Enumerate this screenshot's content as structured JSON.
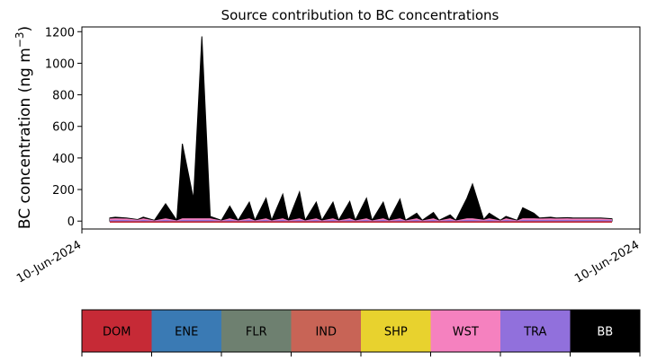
{
  "chart_data": {
    "type": "area",
    "title": "Source contribution to BC concentrations",
    "ylabel_main": "BC concentration (ng m",
    "ylabel_exp": "−3",
    "ylabel_close": ")",
    "ylim": [
      -50,
      1230
    ],
    "yticks": [
      0,
      200,
      400,
      600,
      800,
      1000,
      1200
    ],
    "xtick_labels": [
      "10-Jun-2024",
      "10-Jun-2024"
    ],
    "grid": false,
    "series_colors": {
      "total": "#000000",
      "pink_component": "#f781bf",
      "purple_component": "#9370db",
      "red_component": "#c62a36"
    },
    "x": [
      0.05,
      0.06,
      0.08,
      0.1,
      0.11,
      0.13,
      0.15,
      0.17,
      0.18,
      0.2,
      0.215,
      0.23,
      0.25,
      0.265,
      0.28,
      0.3,
      0.31,
      0.33,
      0.34,
      0.36,
      0.37,
      0.39,
      0.4,
      0.42,
      0.43,
      0.45,
      0.46,
      0.48,
      0.49,
      0.51,
      0.52,
      0.54,
      0.55,
      0.57,
      0.58,
      0.6,
      0.61,
      0.63,
      0.64,
      0.66,
      0.67,
      0.69,
      0.7,
      0.72,
      0.73,
      0.75,
      0.76,
      0.78,
      0.79,
      0.81,
      0.82,
      0.84,
      0.85,
      0.87,
      0.88,
      0.9,
      0.91,
      0.93,
      0.95
    ],
    "values": [
      20,
      25,
      20,
      10,
      25,
      5,
      110,
      5,
      490,
      140,
      1170,
      30,
      5,
      95,
      5,
      120,
      5,
      145,
      5,
      170,
      5,
      185,
      5,
      120,
      5,
      120,
      5,
      125,
      5,
      145,
      5,
      120,
      5,
      140,
      5,
      50,
      5,
      55,
      5,
      40,
      5,
      145,
      235,
      10,
      50,
      5,
      30,
      5,
      85,
      50,
      20,
      25,
      20,
      22,
      20,
      20,
      20,
      20,
      15
    ]
  },
  "colorbar": {
    "segments": [
      {
        "label": "DOM",
        "color": "#c62a36"
      },
      {
        "label": "ENE",
        "color": "#3a7ab4"
      },
      {
        "label": "FLR",
        "color": "#6e8070"
      },
      {
        "label": "IND",
        "color": "#c86456"
      },
      {
        "label": "SHP",
        "color": "#e8d22e"
      },
      {
        "label": "WST",
        "color": "#f581bf"
      },
      {
        "label": "TRA",
        "color": "#9170dc"
      },
      {
        "label": "BB",
        "color": "#000000"
      }
    ]
  }
}
